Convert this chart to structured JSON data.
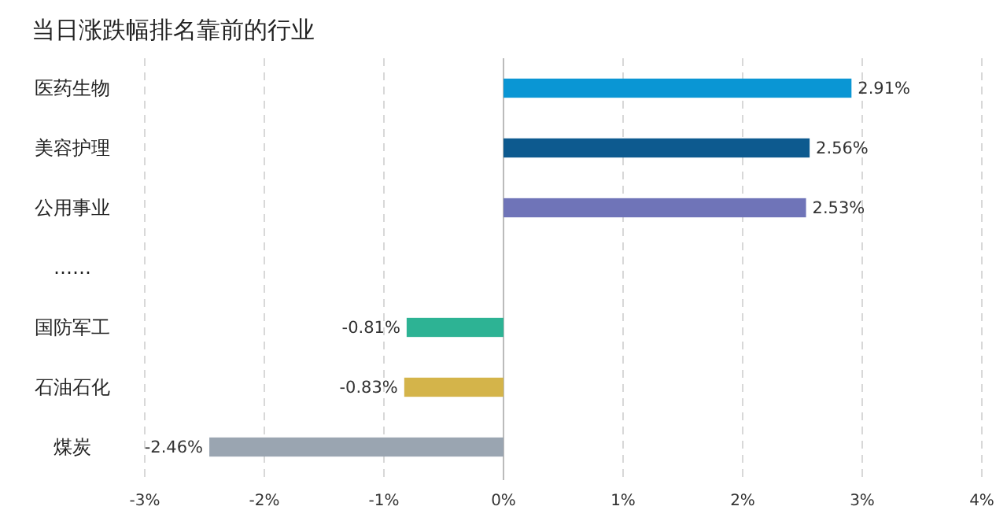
{
  "chart_data": {
    "type": "bar",
    "orientation": "horizontal",
    "title": "当日涨跌幅排名靠前的行业",
    "categories": [
      "医药生物",
      "美容护理",
      "公用事业",
      "……",
      "国防军工",
      "石油石化",
      "煤炭"
    ],
    "values": [
      2.91,
      2.56,
      2.53,
      null,
      -0.81,
      -0.83,
      -2.46
    ],
    "colors": [
      "#0a96d4",
      "#0d5a8f",
      "#6f74b8",
      null,
      "#2db394",
      "#d4b44a",
      "#9aa5b1"
    ],
    "value_labels": [
      "2.91%",
      "2.56%",
      "2.53%",
      null,
      "-0.81%",
      "-0.83%",
      "-2.46%"
    ],
    "xlim": [
      -3,
      4
    ],
    "xticks": [
      {
        "value": -3,
        "label": "-3%"
      },
      {
        "value": -2,
        "label": "-2%"
      },
      {
        "value": -1,
        "label": "-1%"
      },
      {
        "value": 0,
        "label": "0%"
      },
      {
        "value": 1,
        "label": "1%"
      },
      {
        "value": 2,
        "label": "2%"
      },
      {
        "value": 3,
        "label": "3%"
      },
      {
        "value": 4,
        "label": "4%"
      }
    ],
    "grid": "x"
  }
}
